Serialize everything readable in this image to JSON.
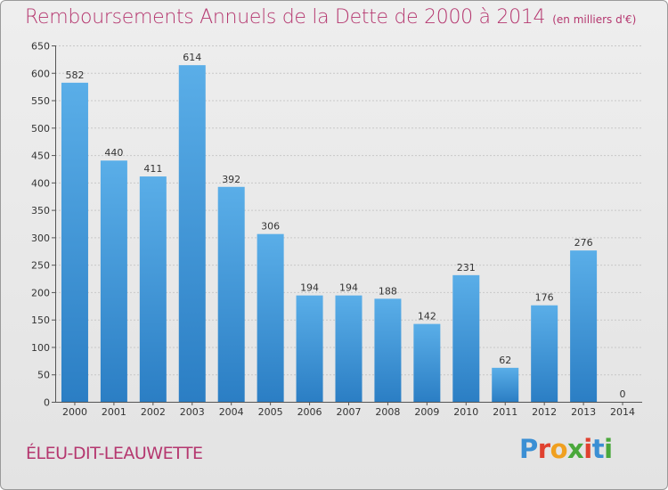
{
  "title": "Remboursements Annuels de la Dette de 2000 à 2014",
  "unit_note": "(en milliers d'€)",
  "commune": "ÉLEU-DIT-LEAUWETTE",
  "logo": {
    "text": "Proxiti",
    "colors": [
      "#3b8fd4",
      "#e0412f",
      "#f0a020",
      "#4aa83b",
      "#e0412f",
      "#3b8fd4",
      "#4aa83b"
    ]
  },
  "chart_data": {
    "type": "bar",
    "title": "Remboursements Annuels de la Dette de 2000 à 2014",
    "categories": [
      "2000",
      "2001",
      "2002",
      "2003",
      "2004",
      "2005",
      "2006",
      "2007",
      "2008",
      "2009",
      "2010",
      "2011",
      "2012",
      "2013",
      "2014"
    ],
    "values": [
      582,
      440,
      411,
      614,
      392,
      306,
      194,
      194,
      188,
      142,
      231,
      62,
      176,
      276,
      0
    ],
    "ylim": [
      0,
      650
    ],
    "yticks": [
      0,
      50,
      100,
      150,
      200,
      250,
      300,
      350,
      400,
      450,
      500,
      550,
      600,
      650
    ],
    "grid": true,
    "bar_color_top": "#5aaee8",
    "bar_color_bottom": "#2b7ec4"
  }
}
